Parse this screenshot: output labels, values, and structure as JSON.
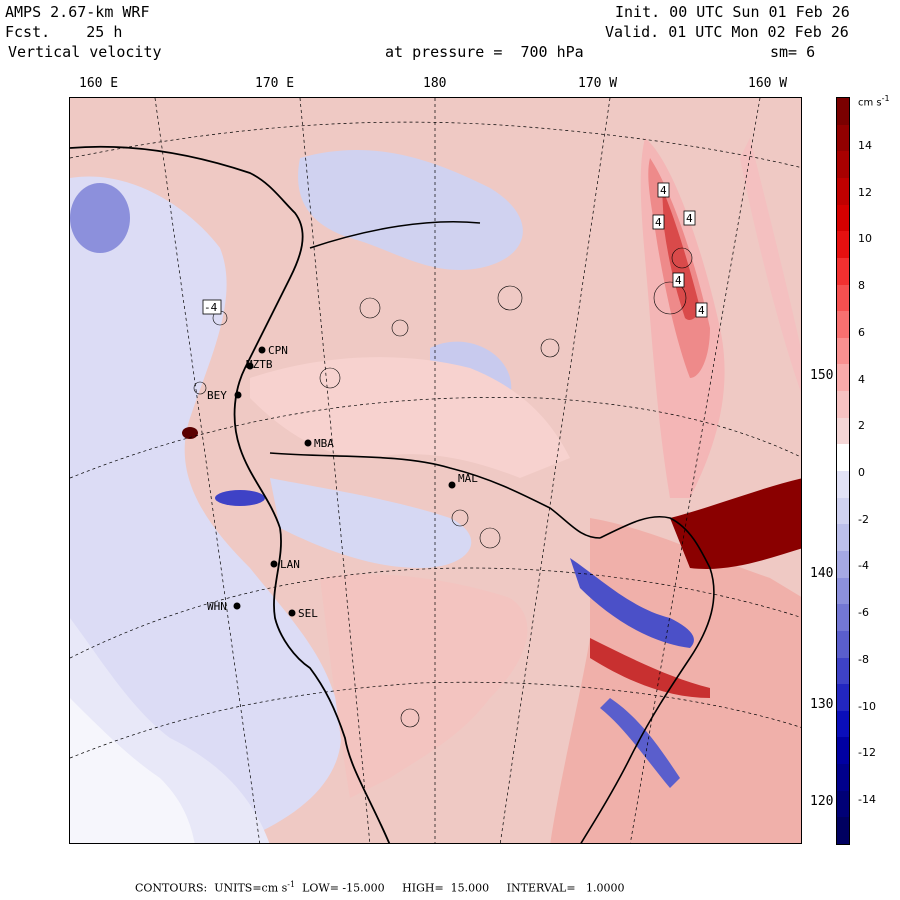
{
  "header": {
    "model": "AMPS 2.67-km WRF",
    "forecast": "Fcst.    25 h",
    "variable": "Vertical velocity",
    "init": "Init. 00 UTC Sun 01 Feb 26",
    "valid": "Valid. 01 UTC Mon 02 Feb 26",
    "level": "at pressure =  700 hPa",
    "smoothing": "sm= 6"
  },
  "longitude_labels": [
    "160 E",
    "170 E",
    "180",
    "170 W",
    "160 W"
  ],
  "latitude_labels": [
    "150 W",
    "140 W",
    "130 W",
    "120 W"
  ],
  "colorbar": {
    "unit": "cm s",
    "unit_exp": "-1",
    "ticks": [
      "14",
      "12",
      "10",
      "8",
      "6",
      "4",
      "2",
      "0",
      "-2",
      "-4",
      "-6",
      "-8",
      "-10",
      "-12",
      "-14"
    ],
    "colors": [
      "#7a0000",
      "#920000",
      "#a80000",
      "#bf0000",
      "#d40000",
      "#e61010",
      "#f23030",
      "#f65050",
      "#f87070",
      "#f99090",
      "#f9abab",
      "#f7c2c2",
      "#f4d6d6",
      "#ffffff",
      "#e2e2f6",
      "#d0d2f0",
      "#bcbfea",
      "#a5a8e3",
      "#8c90dc",
      "#7377d4",
      "#5a5ecc",
      "#3e42c6",
      "#2226c0",
      "#0a0eba",
      "#0000a2",
      "#00008c",
      "#000076",
      "#000060"
    ]
  },
  "stations": [
    {
      "name": "CPN"
    },
    {
      "name": "MZTB"
    },
    {
      "name": "BEY"
    },
    {
      "name": "MBA"
    },
    {
      "name": "MAL"
    },
    {
      "name": "LAN"
    },
    {
      "name": "WHN"
    },
    {
      "name": "SEL"
    }
  ],
  "extrema_labels": [
    "4",
    "4",
    "4",
    "4",
    "4",
    "-4"
  ],
  "footer": {
    "contours_label": "CONTOURS:",
    "units": "UNITS=cm s",
    "units_exp": "-1",
    "low": "LOW= -15.000",
    "high": "HIGH=  15.000",
    "interval": "INTERVAL=   1.0000"
  }
}
